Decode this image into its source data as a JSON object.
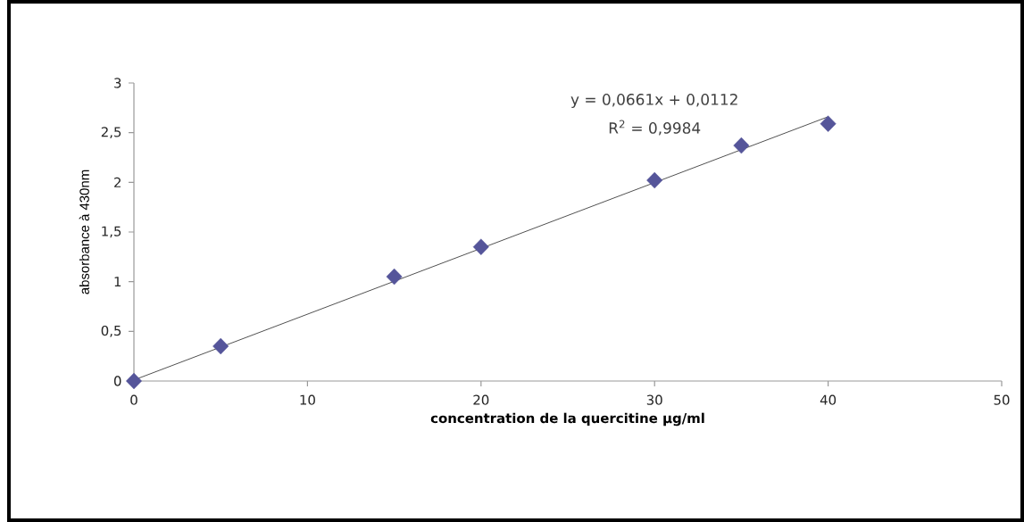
{
  "chart_data": {
    "type": "scatter",
    "xlabel": "concentration  de la quercitine µg/ml",
    "ylabel": "absorbance à 430nm",
    "annotations": [
      "y = 0,0661x + 0,0112",
      "R$^{2}$ = 0,9984"
    ],
    "x": [
      0,
      5,
      15,
      20,
      30,
      35,
      40
    ],
    "series": [
      {
        "color": "#55559a",
        "values": [
          0,
          0.35,
          1.05,
          1.35,
          2.02,
          2.37,
          2.59
        ],
        "marker": "diamond"
      },
      {
        "type": "line",
        "color": "#505050",
        "x": [
          0,
          40
        ],
        "values": [
          0.01,
          2.66
        ],
        "marker": "none"
      }
    ],
    "xlim": [
      0,
      50
    ],
    "ylim": [
      0,
      3
    ],
    "xticks": [
      0,
      10,
      20,
      30,
      40,
      50
    ],
    "yticks": [
      0,
      {
        "value": 0.5,
        "label": "0,5"
      },
      1,
      {
        "value": 1.5,
        "label": "1,5"
      },
      2,
      {
        "value": 2.5,
        "label": "2,5"
      },
      3
    ],
    "grid": false
  }
}
